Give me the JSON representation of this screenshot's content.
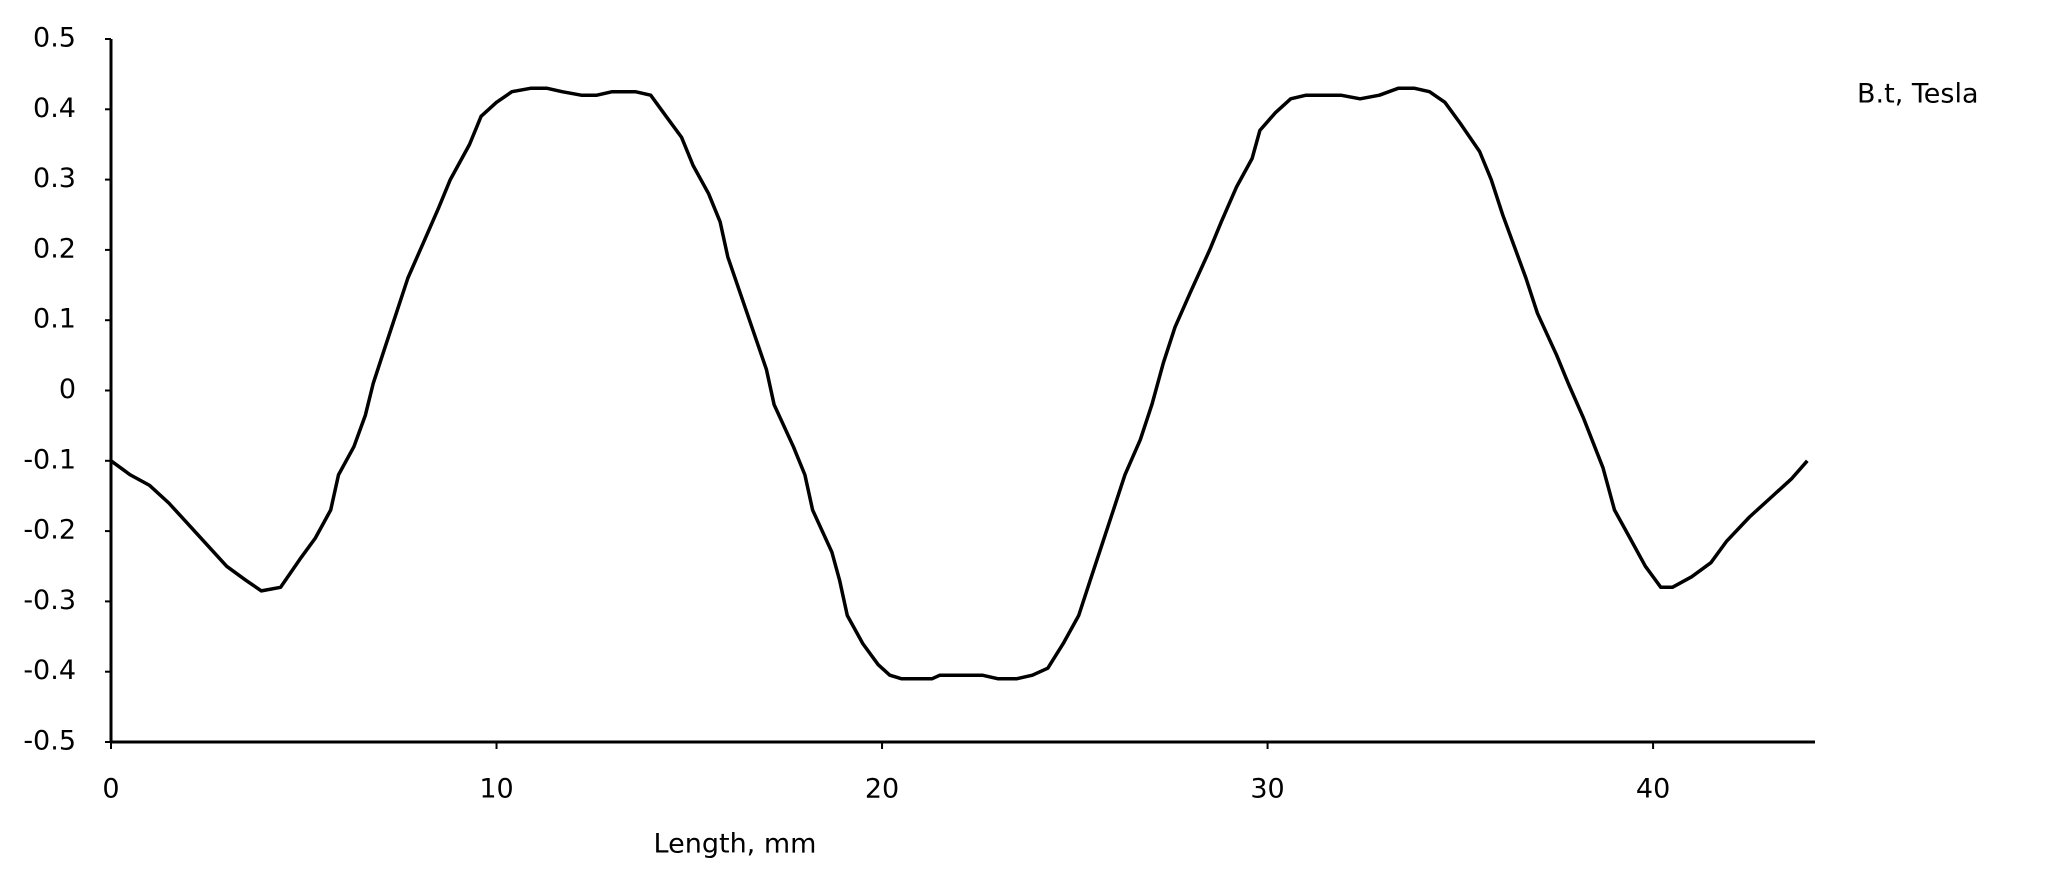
{
  "chart_data": {
    "type": "line",
    "xlabel": "Length, mm",
    "series": [
      {
        "name": "B.t, Tesla",
        "color": "#000000",
        "x": [
          0,
          0.5,
          1,
          1.5,
          2,
          2.5,
          3,
          3.5,
          3.9,
          4.4,
          4.9,
          5.3,
          5.7,
          5.9,
          6.3,
          6.6,
          6.8,
          7.1,
          7.4,
          7.7,
          8.1,
          8.5,
          8.8,
          9.3,
          9.6,
          10,
          10.4,
          10.9,
          11.3,
          11.7,
          12.2,
          12.6,
          13,
          13.6,
          14,
          14.4,
          14.8,
          15.1,
          15.5,
          15.8,
          16,
          16.5,
          17,
          17.2,
          17.7,
          18,
          18.2,
          18.7,
          18.9,
          19.1,
          19.5,
          19.9,
          20.2,
          20.5,
          21,
          21.3,
          21.5,
          22,
          22.6,
          23,
          23.5,
          23.9,
          24.3,
          24.7,
          25.1,
          25.4,
          25.7,
          26,
          26.3,
          26.7,
          27,
          27.3,
          27.6,
          28,
          28.5,
          28.8,
          29.2,
          29.6,
          29.8,
          30.2,
          30.6,
          31,
          31.5,
          31.9,
          32.4,
          32.9,
          33.4,
          33.8,
          34.2,
          34.6,
          35,
          35.5,
          35.8,
          36.1,
          36.7,
          37,
          37.5,
          37.8,
          38.2,
          38.7,
          39,
          39.4,
          39.8,
          40.2,
          40.5,
          41,
          41.5,
          41.9,
          42.5,
          43.1,
          43.6,
          44
        ],
        "values": [
          -0.1,
          -0.12,
          -0.135,
          -0.16,
          -0.19,
          -0.22,
          -0.25,
          -0.27,
          -0.285,
          -0.28,
          -0.24,
          -0.21,
          -0.17,
          -0.12,
          -0.08,
          -0.035,
          0.01,
          0.06,
          0.11,
          0.16,
          0.21,
          0.26,
          0.3,
          0.35,
          0.39,
          0.41,
          0.425,
          0.43,
          0.43,
          0.425,
          0.42,
          0.42,
          0.425,
          0.425,
          0.42,
          0.39,
          0.36,
          0.32,
          0.28,
          0.24,
          0.19,
          0.11,
          0.03,
          -0.02,
          -0.08,
          -0.12,
          -0.17,
          -0.23,
          -0.27,
          -0.32,
          -0.36,
          -0.39,
          -0.405,
          -0.41,
          -0.41,
          -0.41,
          -0.405,
          -0.405,
          -0.405,
          -0.41,
          -0.41,
          -0.405,
          -0.395,
          -0.36,
          -0.32,
          -0.27,
          -0.22,
          -0.17,
          -0.12,
          -0.07,
          -0.02,
          0.04,
          0.09,
          0.14,
          0.2,
          0.24,
          0.29,
          0.33,
          0.37,
          0.395,
          0.415,
          0.42,
          0.42,
          0.42,
          0.415,
          0.42,
          0.43,
          0.43,
          0.425,
          0.41,
          0.38,
          0.34,
          0.3,
          0.25,
          0.16,
          0.11,
          0.05,
          0.01,
          -0.04,
          -0.11,
          -0.17,
          -0.21,
          -0.25,
          -0.28,
          -0.28,
          -0.265,
          -0.245,
          -0.215,
          -0.18,
          -0.15,
          -0.125,
          -0.1
        ]
      }
    ],
    "xlim": [
      0,
      44.2
    ],
    "xticks": [
      0,
      10,
      20,
      30,
      40
    ],
    "ylim": [
      -0.5,
      0.5
    ],
    "yticks": [
      -0.5,
      -0.4,
      -0.3,
      -0.2,
      -0.1,
      0,
      0.1,
      0.2,
      0.3,
      0.4,
      0.5
    ],
    "grid": false
  }
}
